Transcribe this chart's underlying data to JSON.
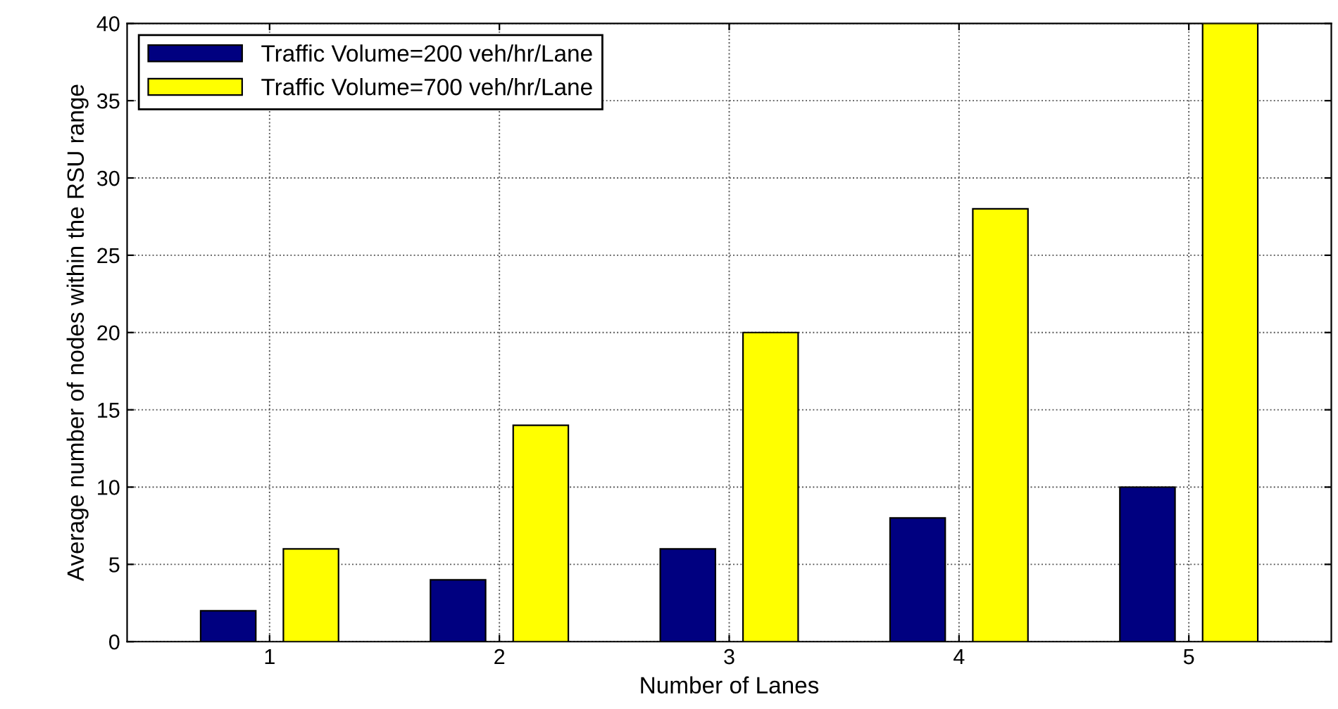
{
  "chart_data": {
    "type": "bar",
    "xlabel": "Number of Lanes",
    "ylabel": "Average number of nodes within the RSU range",
    "categories": [
      "1",
      "2",
      "3",
      "4",
      "5"
    ],
    "series": [
      {
        "name": "Traffic Volume=200 veh/hr/Lane",
        "color": "#000080",
        "values": [
          2,
          4,
          6,
          8,
          10
        ]
      },
      {
        "name": "Traffic Volume=700 veh/hr/Lane",
        "color": "#ffff00",
        "values": [
          6,
          14,
          20,
          28,
          40
        ]
      }
    ],
    "ylim": [
      0,
      40
    ],
    "yticks": [
      0,
      5,
      10,
      15,
      20,
      25,
      30,
      35,
      40
    ],
    "grid": true,
    "legend": "top left"
  }
}
